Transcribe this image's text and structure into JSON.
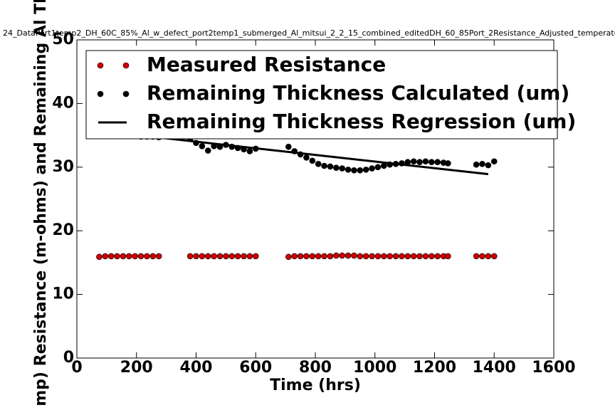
{
  "chart_data": {
    "type": "scatter",
    "title": "24_DataPort1temp2_DH_60C_85%_Al_w_defect_port2temp1_submerged_Al_mitsui_2_2_15_combined_editedDH_60_85Port_2Resistance_Adjusted_temperate",
    "x_label": "Time (hrs)",
    "y_label": "mp) Resistance (m-ohms) and Remaining Al Th",
    "xlim": [
      0,
      1600
    ],
    "ylim": [
      0,
      50
    ],
    "xticks": [
      0,
      200,
      400,
      600,
      800,
      1000,
      1200,
      1400,
      1600
    ],
    "yticks": [
      0,
      10,
      20,
      30,
      40,
      50
    ],
    "grid": false,
    "series": [
      {
        "name": "Measured Resistance",
        "kind": "scatter",
        "color": "#cc0000",
        "x": [
          75,
          95,
          115,
          135,
          155,
          175,
          195,
          215,
          235,
          255,
          275,
          380,
          400,
          420,
          440,
          460,
          480,
          500,
          520,
          540,
          560,
          580,
          600,
          710,
          730,
          750,
          770,
          790,
          810,
          830,
          850,
          870,
          890,
          910,
          930,
          950,
          970,
          990,
          1010,
          1030,
          1050,
          1070,
          1090,
          1110,
          1130,
          1150,
          1170,
          1190,
          1210,
          1230,
          1245,
          1340,
          1360,
          1380,
          1400
        ],
        "values": [
          15.9,
          16,
          16,
          16,
          16,
          16,
          16,
          16,
          16,
          16,
          16,
          16,
          16,
          16,
          16,
          16,
          16,
          16,
          16,
          16,
          16,
          16,
          16,
          15.9,
          16,
          16,
          16,
          16,
          16,
          16,
          16,
          16.1,
          16.1,
          16.1,
          16.1,
          16,
          16,
          16,
          16,
          16,
          16,
          16,
          16,
          16,
          16,
          16,
          16,
          16,
          16,
          16,
          16,
          16,
          16,
          16,
          16
        ]
      },
      {
        "name": "Remaining Thickness Calculated (um)",
        "kind": "scatter",
        "color": "#000000",
        "x": [
          75,
          95,
          115,
          135,
          155,
          175,
          195,
          215,
          235,
          255,
          275,
          380,
          400,
          420,
          440,
          460,
          480,
          500,
          520,
          540,
          560,
          580,
          600,
          710,
          730,
          750,
          770,
          790,
          810,
          830,
          850,
          870,
          890,
          910,
          930,
          950,
          970,
          990,
          1010,
          1030,
          1050,
          1070,
          1090,
          1110,
          1130,
          1150,
          1170,
          1190,
          1210,
          1230,
          1245,
          1340,
          1360,
          1380,
          1400
        ],
        "values": [
          35.5,
          35.3,
          35.2,
          35,
          35,
          34.9,
          34.9,
          34.8,
          34.8,
          34.8,
          34.7,
          34.5,
          33.8,
          33.3,
          32.6,
          33.3,
          33.2,
          33.5,
          33.2,
          33,
          32.8,
          32.5,
          32.9,
          33.2,
          32.5,
          32,
          31.5,
          31,
          30.5,
          30.2,
          30.1,
          29.9,
          29.8,
          29.6,
          29.5,
          29.5,
          29.6,
          29.8,
          30,
          30.2,
          30.4,
          30.5,
          30.6,
          30.8,
          30.9,
          30.8,
          30.9,
          30.8,
          30.8,
          30.7,
          30.6,
          30.4,
          30.5,
          30.3,
          30.9
        ]
      },
      {
        "name": "Remaining Thickness Regression (um)",
        "kind": "line",
        "color": "#000000",
        "x": [
          75,
          1380
        ],
        "values": [
          35.7,
          28.9
        ]
      }
    ]
  }
}
